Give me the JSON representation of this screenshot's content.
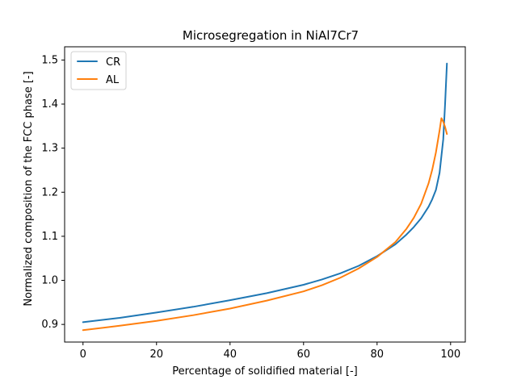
{
  "chart_data": {
    "type": "line",
    "title": "Microsegregation in NiAl7Cr7",
    "xlabel": "Percentage of solidified material [-]",
    "ylabel": "Normalized composition of the FCC phase [-]",
    "xlim": [
      -5,
      104
    ],
    "ylim": [
      0.86,
      1.53
    ],
    "xticks": [
      0,
      20,
      40,
      60,
      80,
      100
    ],
    "yticks": [
      0.9,
      1.0,
      1.1,
      1.2,
      1.3,
      1.4,
      1.5
    ],
    "xtick_labels": [
      "0",
      "20",
      "40",
      "60",
      "80",
      "100"
    ],
    "ytick_labels": [
      "0.9",
      "1.0",
      "1.1",
      "1.2",
      "1.3",
      "1.4",
      "1.5"
    ],
    "grid": false,
    "legend": {
      "position": "top-left",
      "entries": [
        "CR",
        "AL"
      ]
    },
    "series": [
      {
        "name": "CR",
        "color": "#1f77b4",
        "x": [
          0,
          10,
          20,
          30,
          40,
          50,
          60,
          65,
          70,
          75,
          80,
          85,
          88,
          90,
          92,
          94,
          95,
          96,
          97,
          98,
          98.5,
          99
        ],
        "y": [
          0.905,
          0.915,
          0.927,
          0.94,
          0.955,
          0.971,
          0.99,
          1.002,
          1.016,
          1.033,
          1.055,
          1.082,
          1.104,
          1.121,
          1.141,
          1.167,
          1.184,
          1.205,
          1.244,
          1.32,
          1.4,
          1.492
        ]
      },
      {
        "name": "AL",
        "color": "#ff7f0e",
        "x": [
          0,
          10,
          20,
          30,
          40,
          50,
          60,
          65,
          70,
          75,
          80,
          85,
          88,
          90,
          92,
          94,
          95,
          96,
          97,
          97.5,
          98,
          98.5,
          99
        ],
        "y": [
          0.887,
          0.897,
          0.908,
          0.921,
          0.936,
          0.954,
          0.975,
          0.989,
          1.006,
          1.027,
          1.053,
          1.087,
          1.117,
          1.142,
          1.174,
          1.22,
          1.251,
          1.29,
          1.34,
          1.368,
          1.36,
          1.348,
          1.332
        ]
      }
    ]
  }
}
